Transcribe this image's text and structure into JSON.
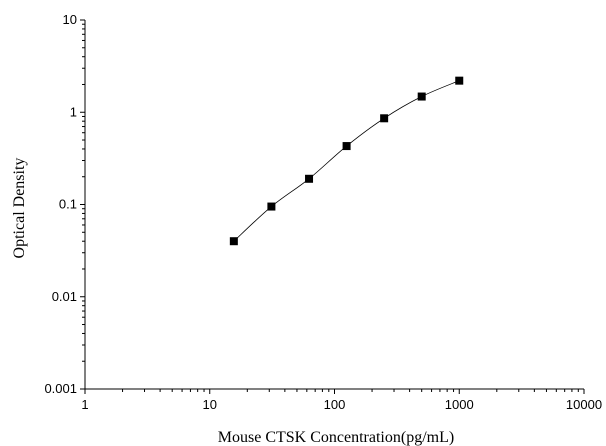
{
  "chart_data": {
    "type": "scatter",
    "title": "",
    "xlabel": "Mouse CTSK Concentration(pg/mL)",
    "ylabel": "Optical Density",
    "xscale": "log",
    "yscale": "log",
    "xlim": [
      1,
      10000
    ],
    "ylim": [
      0.001,
      10
    ],
    "x_ticks": [
      "1",
      "10",
      "100",
      "1000",
      "10000"
    ],
    "y_ticks": [
      "0.001",
      "0.01",
      "0.1",
      "1",
      "10"
    ],
    "x_tick_values": [
      1,
      10,
      100,
      1000,
      10000
    ],
    "y_tick_values": [
      0.001,
      0.01,
      0.1,
      1,
      10
    ],
    "grid": false,
    "legend": "none",
    "fit_curve": true,
    "series": [
      {
        "x": [
          15.6,
          31.2,
          62.5,
          125,
          250,
          500,
          1000
        ],
        "y": [
          0.04,
          0.095,
          0.19,
          0.43,
          0.86,
          1.48,
          2.2
        ]
      }
    ]
  },
  "colors": {
    "marker": "#000000",
    "line": "#000000",
    "axis": "#000000"
  }
}
